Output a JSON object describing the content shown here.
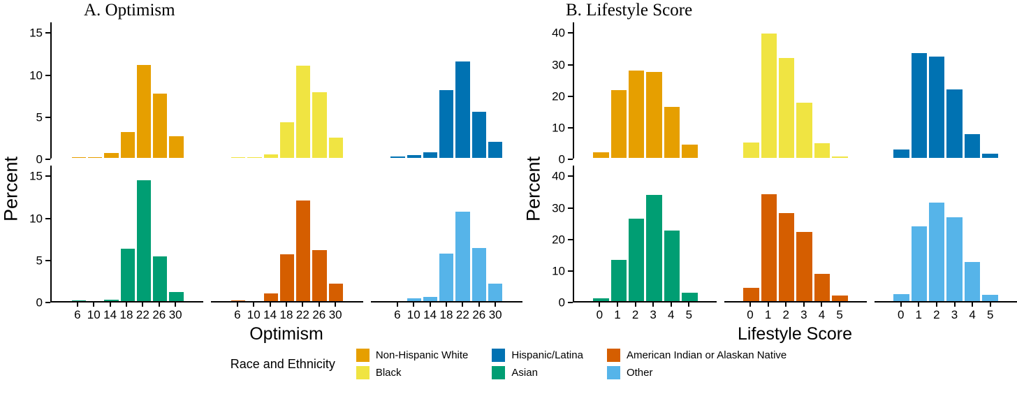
{
  "chart_data": [
    {
      "type": "bar",
      "title": "A. Optimism",
      "xlabel": "Optimism",
      "ylabel": "Percent",
      "x": [
        6,
        10,
        14,
        18,
        22,
        26,
        30
      ],
      "xtick_labels": [
        "6",
        "10",
        "14",
        "18",
        "22",
        "26",
        "30"
      ],
      "ylim": [
        0,
        15
      ],
      "yticks": [
        0,
        5,
        10,
        15
      ],
      "grid": false,
      "layout": "2 rows x 3 cols facets",
      "facets": [
        {
          "name": "Non-Hispanic White",
          "color": "#E69F00",
          "row": 1,
          "col": 1,
          "values": [
            0.1,
            0.1,
            0.6,
            3.1,
            11.2,
            7.7,
            2.6
          ]
        },
        {
          "name": "Black",
          "color": "#F0E442",
          "row": 1,
          "col": 2,
          "values": [
            0.1,
            0.1,
            0.4,
            4.3,
            11.1,
            7.9,
            2.4
          ]
        },
        {
          "name": "Hispanic/Latina",
          "color": "#0072B2",
          "row": 1,
          "col": 3,
          "values": [
            0.2,
            0.3,
            0.7,
            8.1,
            11.6,
            5.5,
            1.9
          ]
        },
        {
          "name": "Asian",
          "color": "#009E73",
          "row": 2,
          "col": 1,
          "values": [
            0.1,
            0,
            0.2,
            6.3,
            14.5,
            5.4,
            1.1
          ]
        },
        {
          "name": "American Indian or Alaskan Native",
          "color": "#D55E00",
          "row": 2,
          "col": 2,
          "values": [
            0.1,
            0,
            0.9,
            5.6,
            12.1,
            6.1,
            2.1
          ]
        },
        {
          "name": "Other",
          "color": "#56B4E9",
          "row": 2,
          "col": 3,
          "values": [
            0,
            0.3,
            0.5,
            5.7,
            10.7,
            6.4,
            2.1
          ]
        }
      ]
    },
    {
      "type": "bar",
      "title": "B. Lifestyle Score",
      "xlabel": "Lifestyle Score",
      "ylabel": "Percent",
      "x": [
        0,
        1,
        2,
        3,
        4,
        5
      ],
      "xtick_labels": [
        "0",
        "1",
        "2",
        "3",
        "4",
        "5"
      ],
      "ylim": [
        0,
        40
      ],
      "yticks": [
        0,
        10,
        20,
        30,
        40
      ],
      "grid": false,
      "layout": "2 rows x 3 cols facets",
      "facets": [
        {
          "name": "Non-Hispanic White",
          "color": "#E69F00",
          "row": 1,
          "col": 1,
          "values": [
            1.9,
            21.8,
            28.0,
            27.5,
            16.4,
            4.3
          ]
        },
        {
          "name": "Black",
          "color": "#F0E442",
          "row": 1,
          "col": 2,
          "values": [
            5.0,
            39.9,
            31.9,
            17.6,
            4.6,
            0.5
          ]
        },
        {
          "name": "Hispanic/Latina",
          "color": "#0072B2",
          "row": 1,
          "col": 3,
          "values": [
            2.6,
            33.5,
            32.4,
            21.9,
            7.7,
            1.4
          ]
        },
        {
          "name": "Asian",
          "color": "#009E73",
          "row": 2,
          "col": 1,
          "values": [
            1.0,
            13.3,
            26.4,
            33.9,
            22.6,
            2.7
          ]
        },
        {
          "name": "American Indian or Alaskan Native",
          "color": "#D55E00",
          "row": 2,
          "col": 2,
          "values": [
            4.3,
            34.2,
            28.1,
            22.1,
            8.8,
            1.9
          ]
        },
        {
          "name": "Other",
          "color": "#56B4E9",
          "row": 2,
          "col": 3,
          "values": [
            2.2,
            23.9,
            31.5,
            26.8,
            12.6,
            2.1
          ]
        }
      ]
    }
  ],
  "legend": {
    "title": "Race and Ethnicity",
    "columns": [
      [
        {
          "label": "Non-Hispanic White",
          "color": "#E69F00"
        },
        {
          "label": "Black",
          "color": "#F0E442"
        }
      ],
      [
        {
          "label": "Hispanic/Latina",
          "color": "#0072B2"
        },
        {
          "label": "Asian",
          "color": "#009E73"
        }
      ],
      [
        {
          "label": "American Indian or Alaskan Native",
          "color": "#D55E00"
        },
        {
          "label": "Other",
          "color": "#56B4E9"
        }
      ]
    ]
  },
  "colors": {
    "axis": "#000000",
    "background": "#ffffff",
    "orange": "#E69F00",
    "yellow": "#F0E442",
    "blue": "#0072B2",
    "green": "#009E73",
    "vermillion": "#D55E00",
    "sky_blue": "#56B4E9"
  }
}
